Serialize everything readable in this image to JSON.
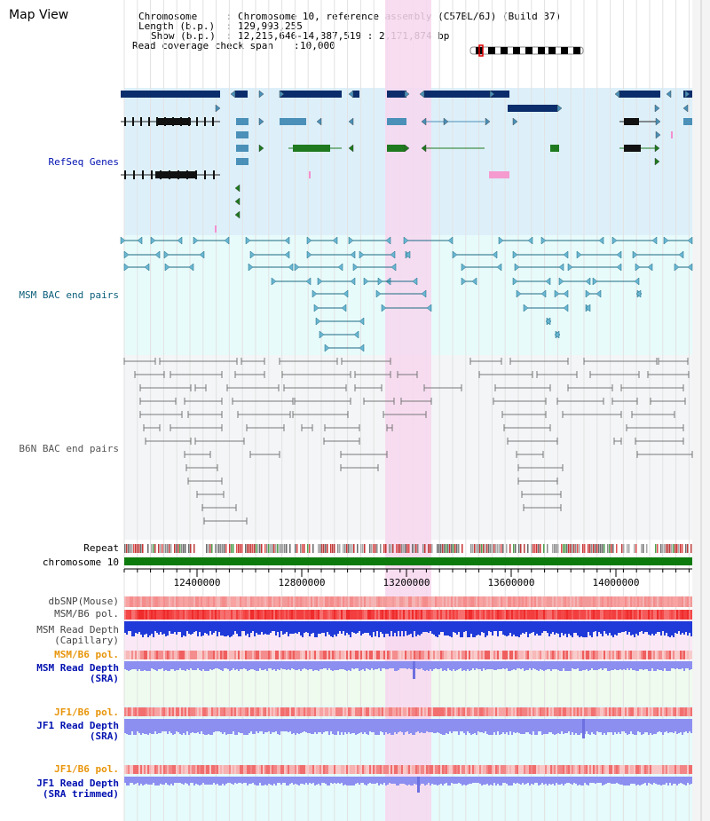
{
  "app": {
    "title": "Map View"
  },
  "info": {
    "chromosome_key": "Chromosome",
    "chromosome_val": "Chromosome 10, reference assembly (C57BL/6J) (Build 37)",
    "length_key": "Length (b.p.)",
    "length_val": "129,993,255",
    "show_key": "Show (b.p.)",
    "show_val": "12,215,646-14,387,519 : 2,171,874 bp",
    "coverage_key": "Read coverage check span",
    "coverage_val": "10,000"
  },
  "colors": {
    "refseq_bg": "#ddf0fa",
    "msm_bac_bg": "#e8fbfb",
    "b6n_bac_bg": "#f3f5f7",
    "selection": "#f7d7ef",
    "refseq_gene": "#0b2d6b",
    "refseq_transcript": "#4a90b8",
    "refseq_green": "#1f7a1f",
    "msm_bac": "#1a6a82",
    "b6n_bac": "#777777",
    "chromosome_bar": "#0d7a0d",
    "snp": "#f59a9a",
    "pol": "#f24f4f",
    "read_depth_cap": "#1f3ad8",
    "read_depth_sra": "#8c8ff0",
    "label_blue": "#0010b0",
    "label_teal": "#0b5e7a",
    "label_orange": "#e8950a"
  },
  "tracks": {
    "refseq_label": "RefSeq Genes",
    "msm_bac_label": "MSM BAC end pairs",
    "b6n_bac_label": "B6N BAC end pairs",
    "repeat_label": "Repeat",
    "chromosome_label": "chromosome 10",
    "dbsnp_label": "dbSNP(Mouse)",
    "msm_b6_pol_label": "MSM/B6 pol.",
    "msm_depth_cap_1": "MSM Read Depth",
    "msm_depth_cap_2": "(Capillary)",
    "msm_b6_pol2_label": "MSM/B6 pol.",
    "msm_depth_sra_1": "MSM Read Depth",
    "msm_depth_sra_2": "(SRA)",
    "jf1_b6_pol_label": "JF1/B6 pol.",
    "jf1_depth_sra_1": "JF1 Read Depth",
    "jf1_depth_sra_2": "(SRA)",
    "jf1_b6_pol2_label": "JF1/B6 pol.",
    "jf1_depth_trim_1": "JF1 Read Depth",
    "jf1_depth_trim_2": "(SRA trimmed)"
  },
  "ruler": {
    "ticks": [
      "12400000",
      "12800000",
      "13200000",
      "13600000",
      "14000000"
    ]
  }
}
